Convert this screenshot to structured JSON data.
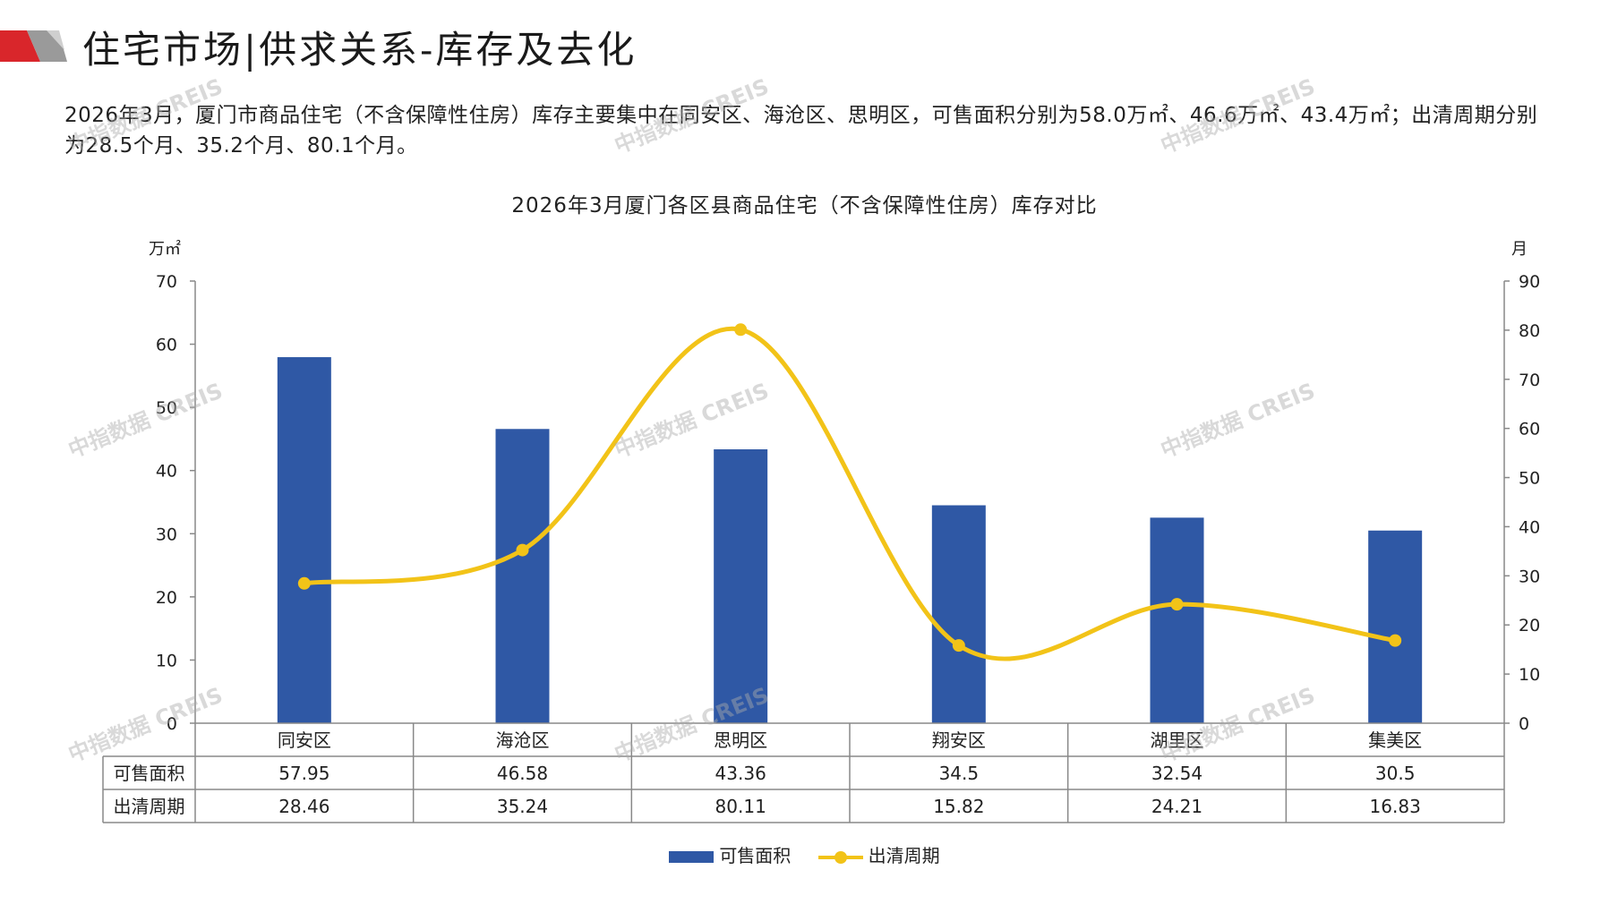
{
  "page": {
    "title": "住宅市场|供求关系-库存及去化",
    "summary": "2026年3月，厦门市商品住宅（不含保障性住房）库存主要集中在同安区、海沧区、思明区，可售面积分别为58.0万㎡、46.6万㎡、43.4万㎡；出清周期分别为28.5个月、35.2个月、80.1个月。",
    "watermark": "中指数据 CREIS"
  },
  "colors": {
    "bar": "#2f58a5",
    "line": "#f2c318",
    "accent": "#d9262b"
  },
  "chart_data": {
    "type": "bar",
    "title": "2026年3月厦门各区县商品住宅（不含保障性住房）库存对比",
    "categories": [
      "同安区",
      "海沧区",
      "思明区",
      "翔安区",
      "湖里区",
      "集美区"
    ],
    "series": [
      {
        "name": "可售面积",
        "type": "bar",
        "axis": "left",
        "values": [
          57.95,
          46.58,
          43.36,
          34.5,
          32.54,
          30.5
        ],
        "labels": [
          "57.95",
          "46.58",
          "43.36",
          "34.5",
          "32.54",
          "30.5"
        ]
      },
      {
        "name": "出清周期",
        "type": "line",
        "axis": "right",
        "values": [
          28.46,
          35.24,
          80.11,
          15.82,
          24.21,
          16.83
        ],
        "labels": [
          "28.46",
          "35.24",
          "80.11",
          "15.82",
          "24.21",
          "16.83"
        ]
      }
    ],
    "y_left": {
      "unit": "万㎡",
      "min": 0,
      "max": 70,
      "ticks": [
        "0",
        "10",
        "20",
        "30",
        "40",
        "50",
        "60",
        "70"
      ]
    },
    "y_right": {
      "unit": "月",
      "min": 0,
      "max": 90,
      "ticks": [
        "0",
        "10",
        "20",
        "30",
        "40",
        "50",
        "60",
        "70",
        "80",
        "90"
      ]
    },
    "grid": false,
    "legend": "bottom",
    "data_table": true
  }
}
